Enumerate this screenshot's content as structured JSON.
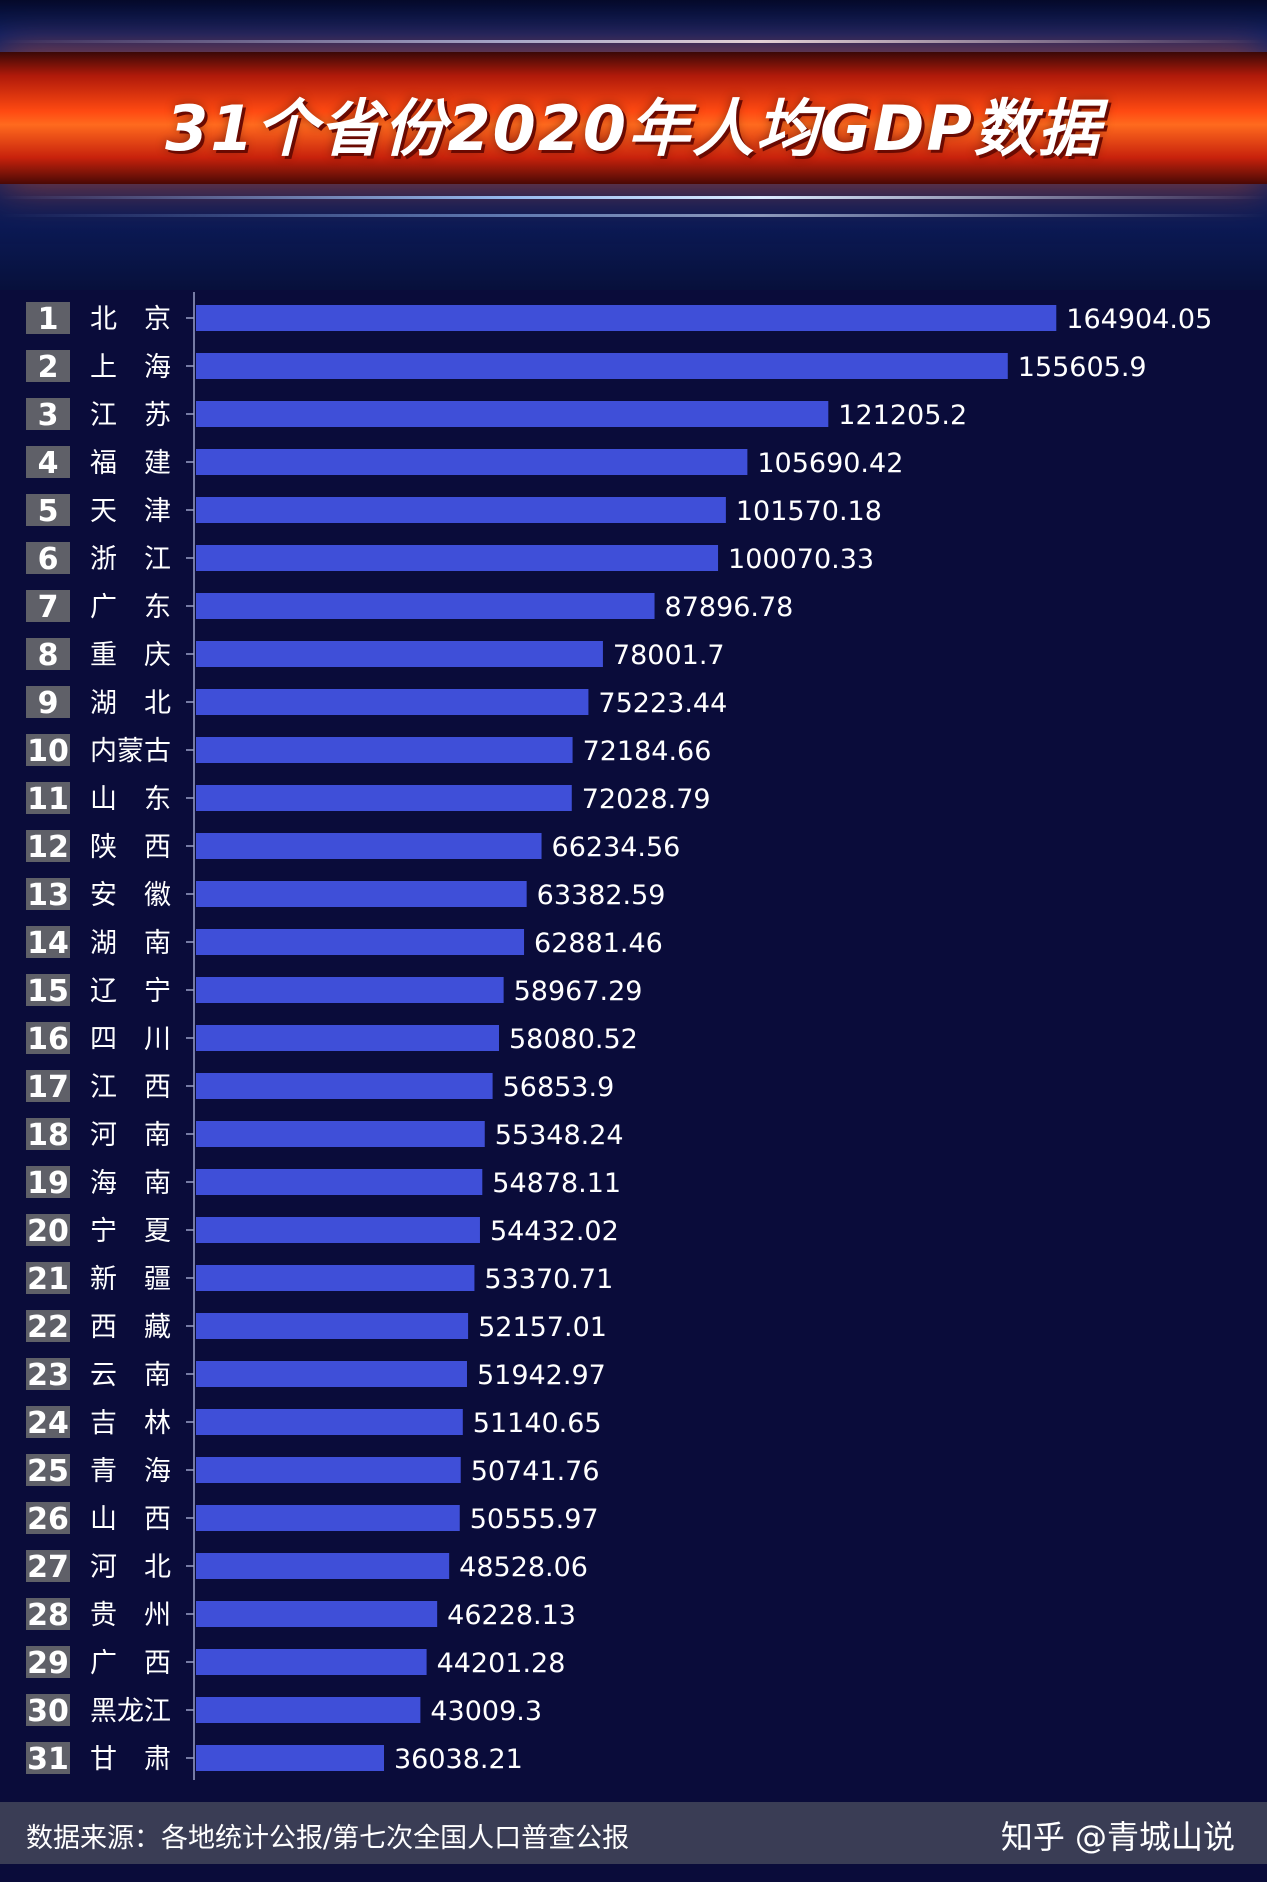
{
  "chart_data": {
    "type": "bar",
    "orientation": "horizontal",
    "title": "31个省份2020年人均GDP数据",
    "ranks": [
      "1",
      "2",
      "3",
      "4",
      "5",
      "6",
      "7",
      "8",
      "9",
      "10",
      "11",
      "12",
      "13",
      "14",
      "15",
      "16",
      "17",
      "18",
      "19",
      "20",
      "21",
      "22",
      "23",
      "24",
      "25",
      "26",
      "27",
      "28",
      "29",
      "30",
      "31"
    ],
    "categories": [
      "北　京",
      "上　海",
      "江　苏",
      "福　建",
      "天　津",
      "浙　江",
      "广　东",
      "重　庆",
      "湖　北",
      "内蒙古",
      "山　东",
      "陕　西",
      "安　徽",
      "湖　南",
      "辽　宁",
      "四　川",
      "江　西",
      "河　南",
      "海　南",
      "宁　夏",
      "新　疆",
      "西　藏",
      "云　南",
      "吉　林",
      "青　海",
      "山　西",
      "河　北",
      "贵　州",
      "广　西",
      "黑龙江",
      "甘　肃"
    ],
    "values": [
      164904.05,
      155605.9,
      121205.2,
      105690.42,
      101570.18,
      100070.33,
      87896.78,
      78001.7,
      75223.44,
      72184.66,
      72028.79,
      66234.56,
      63382.59,
      62881.46,
      58967.29,
      58080.52,
      56853.9,
      55348.24,
      54878.11,
      54432.02,
      53370.71,
      52157.01,
      51942.97,
      51140.65,
      50741.76,
      50555.97,
      48528.06,
      46228.13,
      44201.28,
      43009.3,
      36038.21
    ],
    "value_labels": [
      "164904.05",
      "155605.9",
      "121205.2",
      "105690.42",
      "101570.18",
      "100070.33",
      "87896.78",
      "78001.7",
      "75223.44",
      "72184.66",
      "72028.79",
      "66234.56",
      "63382.59",
      "62881.46",
      "58967.29",
      "58080.52",
      "56853.9",
      "55348.24",
      "54878.11",
      "54432.02",
      "53370.71",
      "52157.01",
      "51942.97",
      "51140.65",
      "50741.76",
      "50555.97",
      "48528.06",
      "46228.13",
      "44201.28",
      "43009.3",
      "36038.21"
    ],
    "xlabel": "",
    "ylabel": "",
    "xlim": [
      0,
      166000
    ],
    "grid": false,
    "legend": "none"
  },
  "footer": {
    "source": "数据来源：各地统计公报/第七次全国人口普查公报",
    "watermark": "知乎 @青城山说"
  },
  "colors": {
    "background": "#0a0c3a",
    "bar": "#3f4fd8",
    "rank_badge": "#5f6068",
    "text": "#ffffff",
    "banner_red": "#ff4a12"
  }
}
